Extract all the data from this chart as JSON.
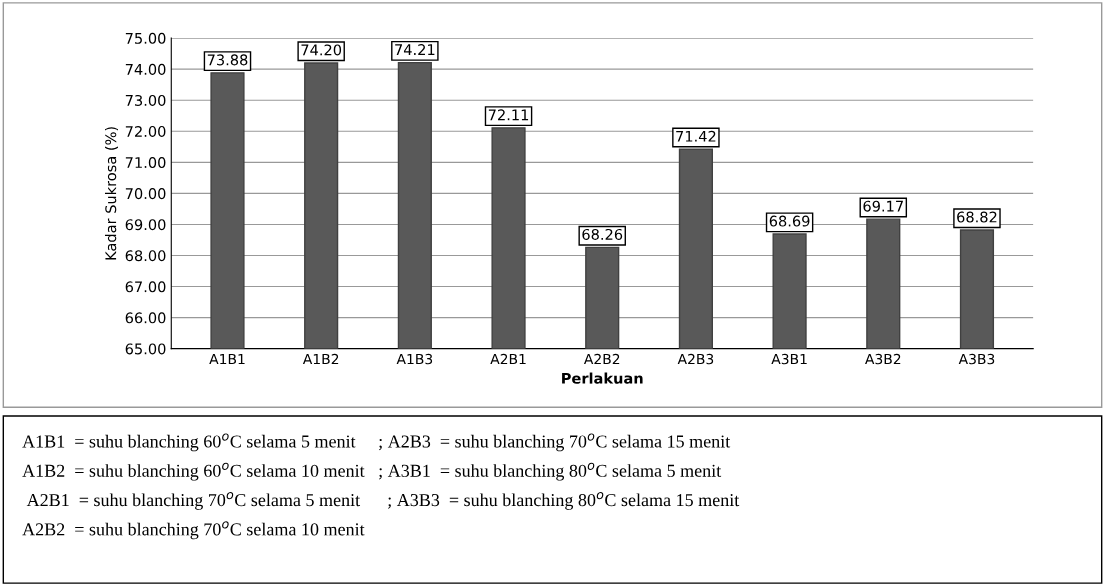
{
  "chart_data": {
    "type": "bar",
    "categories": [
      "A1B1",
      "A1B2",
      "A1B3",
      "A2B1",
      "A2B2",
      "A2B3",
      "A3B1",
      "A3B2",
      "A3B3"
    ],
    "values": [
      73.88,
      74.2,
      74.21,
      72.11,
      68.26,
      71.42,
      68.69,
      69.17,
      68.82
    ],
    "color": "#595959",
    "value_labels": [
      "73.88",
      "74.20",
      "74.21",
      "72.11",
      "68.26",
      "71.42",
      "68.69",
      "69.17",
      "68.82"
    ],
    "xlabel": "Perlakuan",
    "ylabel": "Kadar Sukrosa (%)",
    "ylim": [
      65,
      75
    ],
    "yticks": [
      {
        "value": 65,
        "label": "65.00"
      },
      {
        "value": 66,
        "label": "66.00"
      },
      {
        "value": 67,
        "label": "67.00"
      },
      {
        "value": 68,
        "label": "68.00"
      },
      {
        "value": 69,
        "label": "69.00"
      },
      {
        "value": 70,
        "label": "70.00"
      },
      {
        "value": 71,
        "label": "71.00"
      },
      {
        "value": 72,
        "label": "72.00"
      },
      {
        "value": 73,
        "label": "73.00"
      },
      {
        "value": 74,
        "label": "74.00"
      },
      {
        "value": 75,
        "label": "75.00"
      }
    ],
    "grid": "y",
    "annotations": [
      "A1B1  = suhu blanching 60$^{o}$C selama 5 menit     ; A2B3  = suhu blanching 70$^{o}$C selama 15 menit",
      "A1B2  = suhu blanching 60$^{o}$C selama 10 menit   ; A3B1  = suhu blanching 80$^{o}$C selama 5 menit",
      " A2B1  = suhu blanching 70$^{o}$C selama 5 menit      ; A3B3  = suhu blanching 80$^{o}$C selama 15 menit",
      "A2B2  = suhu blanching 70$^{o}$C selama 10 menit"
    ]
  }
}
